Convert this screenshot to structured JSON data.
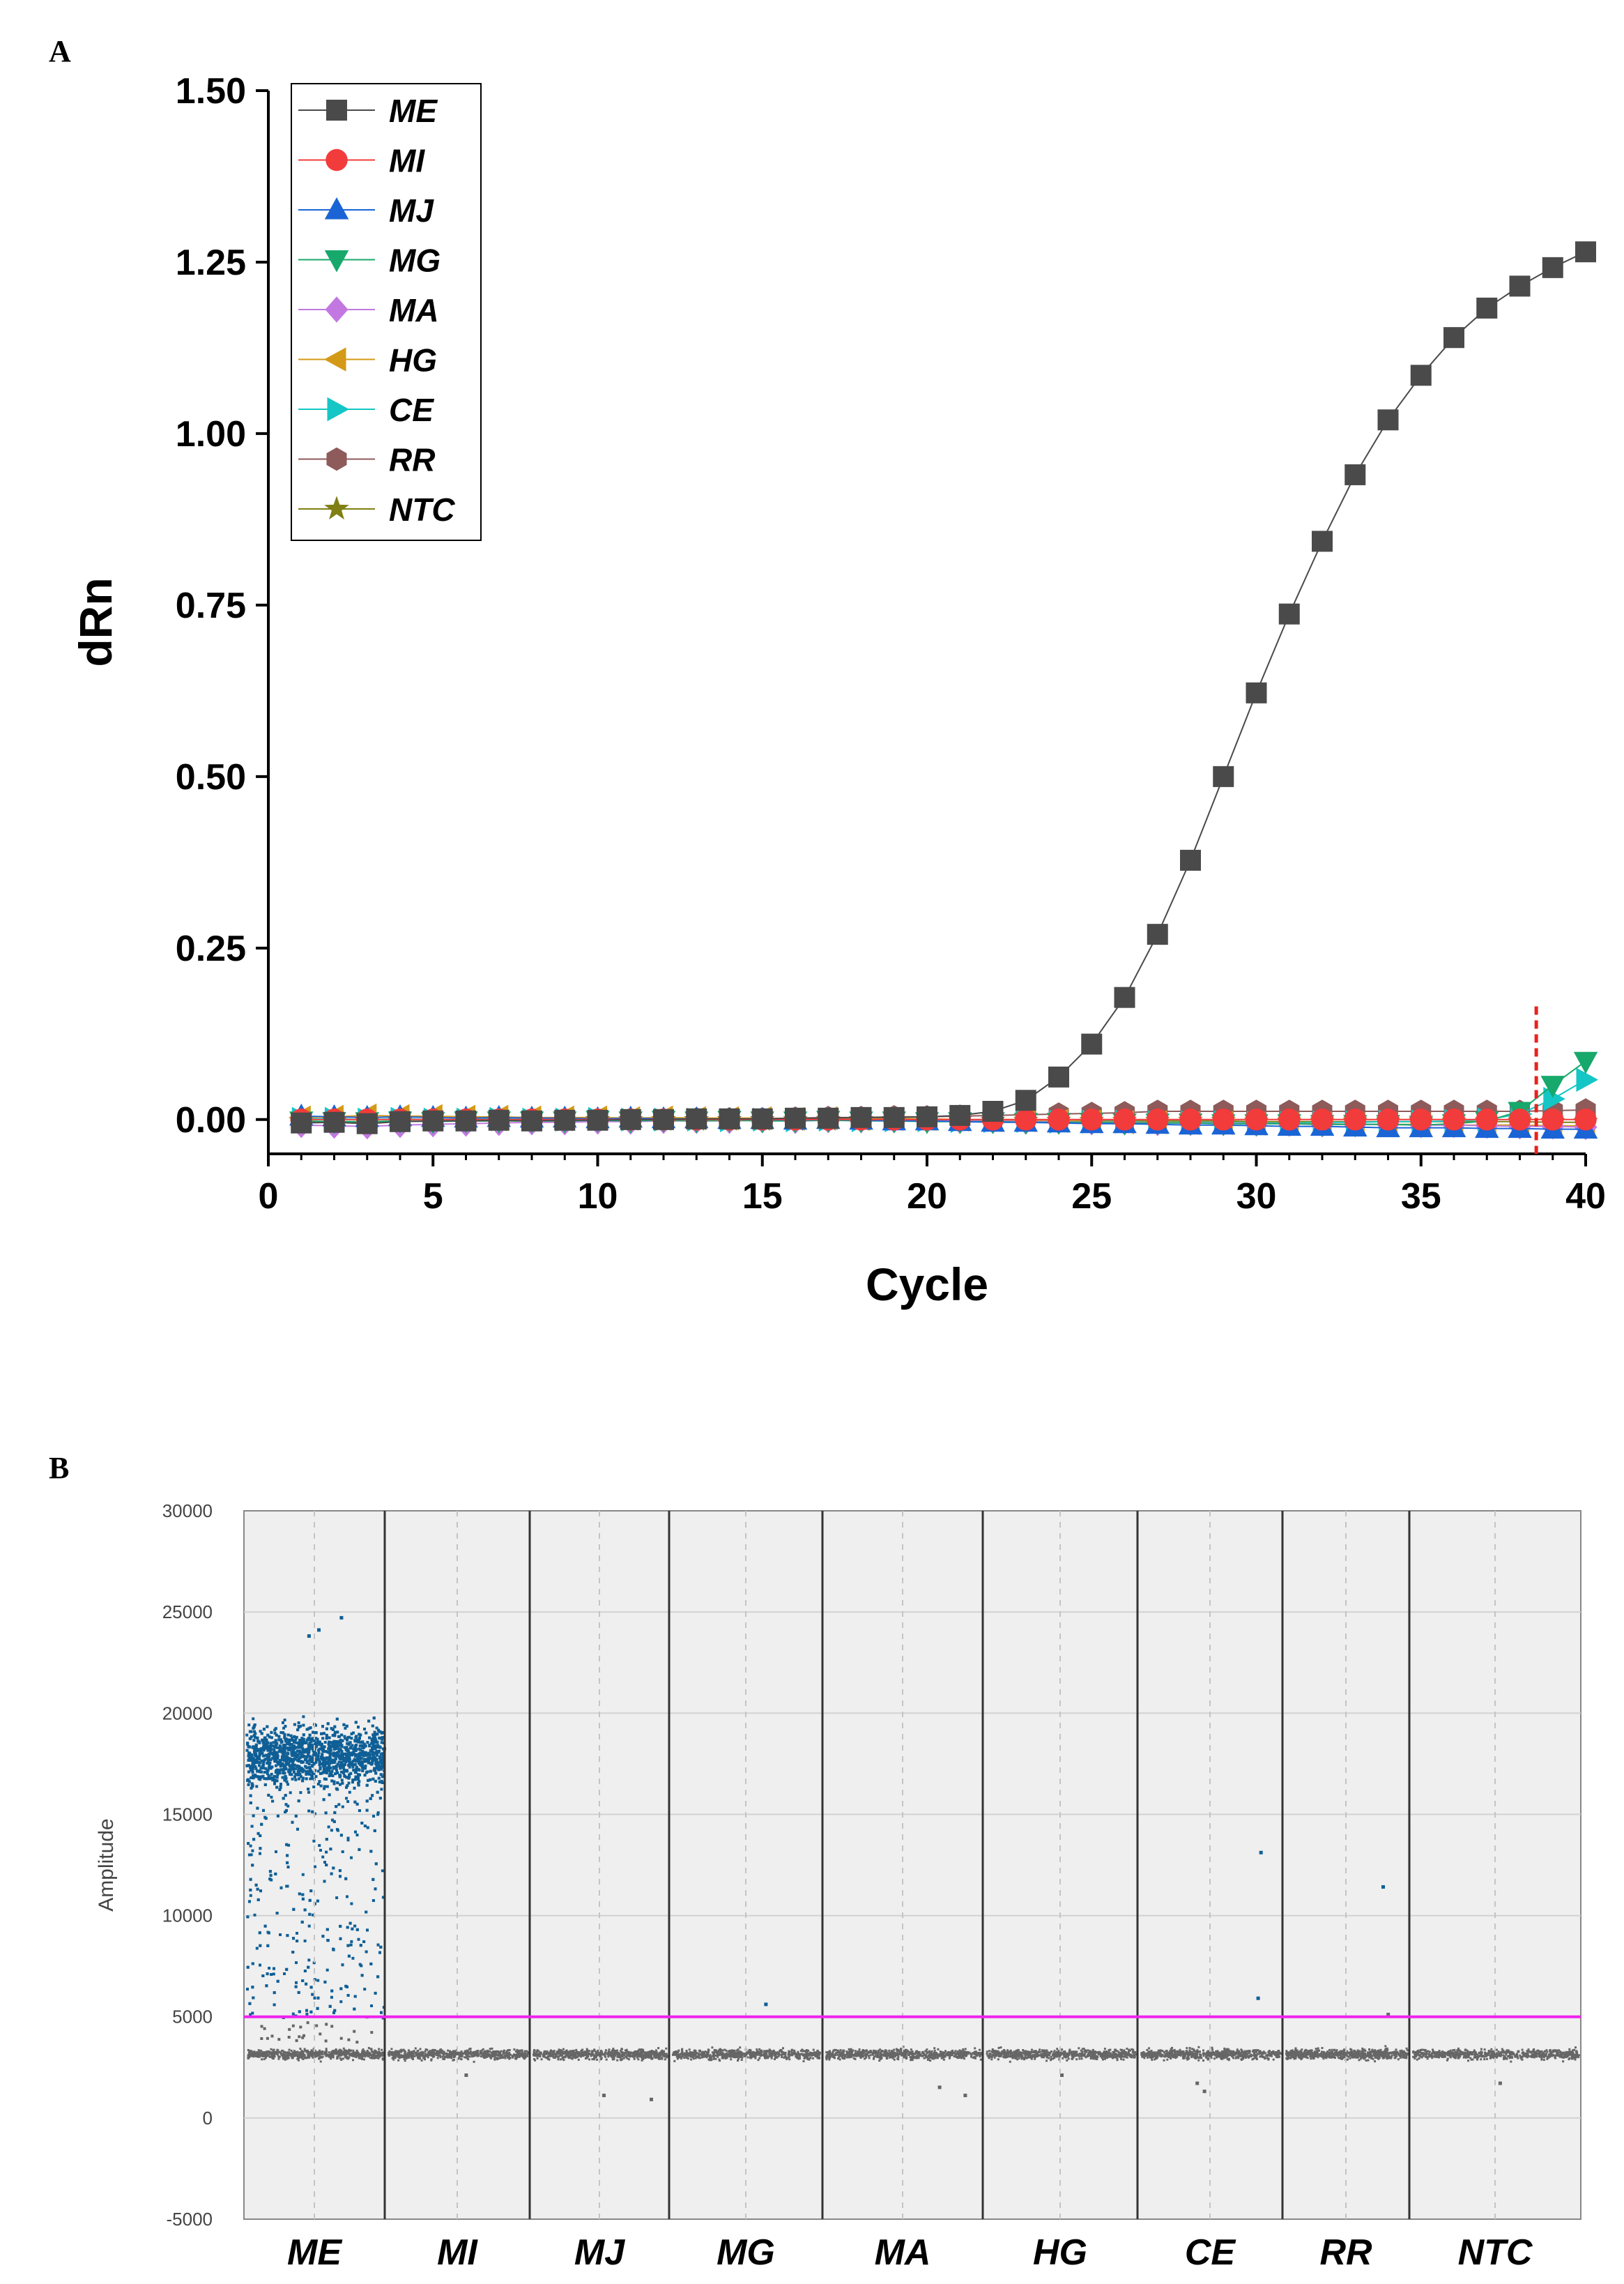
{
  "panels": {
    "a_label": "A",
    "b_label": "B"
  },
  "chart_data": [
    {
      "type": "line",
      "xlabel": "Cycle",
      "ylabel": "dRn",
      "xlim": [
        0,
        40
      ],
      "ylim": [
        -0.05,
        1.5
      ],
      "xticks": [
        "0",
        "5",
        "10",
        "15",
        "20",
        "25",
        "30",
        "35",
        "40"
      ],
      "yticks": [
        "0.00",
        "0.25",
        "0.50",
        "0.75",
        "1.00",
        "1.25",
        "1.50"
      ],
      "legend_position": "top-left",
      "threshold_cycle": 38.5,
      "threshold_color": "#e8231c",
      "x": [
        1,
        2,
        3,
        4,
        5,
        6,
        7,
        8,
        9,
        10,
        11,
        12,
        13,
        14,
        15,
        16,
        17,
        18,
        19,
        20,
        21,
        22,
        23,
        24,
        25,
        26,
        27,
        28,
        29,
        30,
        31,
        32,
        33,
        34,
        35,
        36,
        37,
        38,
        39,
        40
      ],
      "series": [
        {
          "name": "ME",
          "color": "#4a4a4a",
          "marker": "square",
          "values": [
            -0.005,
            -0.004,
            -0.006,
            -0.003,
            -0.002,
            -0.002,
            -0.001,
            -0.002,
            -0.001,
            -0.001,
            0.0,
            0.0,
            0.001,
            0.001,
            0.001,
            0.002,
            0.002,
            0.003,
            0.003,
            0.004,
            0.006,
            0.012,
            0.028,
            0.062,
            0.11,
            0.178,
            0.27,
            0.378,
            0.5,
            0.622,
            0.737,
            0.843,
            0.94,
            1.02,
            1.085,
            1.14,
            1.183,
            1.215,
            1.242,
            1.265
          ]
        },
        {
          "name": "MI",
          "color": "#f23b3b",
          "marker": "circle",
          "values": [
            0,
            0,
            0,
            0,
            0,
            0,
            0,
            0,
            0,
            0,
            0,
            0,
            0,
            0,
            0,
            0,
            0,
            0,
            0,
            0,
            0,
            0,
            0,
            0,
            0,
            0,
            0,
            0,
            0,
            0,
            0,
            0,
            0,
            0,
            0,
            0,
            0,
            0,
            0,
            0
          ]
        },
        {
          "name": "MJ",
          "color": "#1a64d6",
          "marker": "triangle-up",
          "values": [
            0.005,
            0.004,
            0.003,
            0.004,
            0.003,
            0.002,
            0.003,
            0.002,
            0.002,
            0.001,
            0.002,
            0.001,
            0.001,
            0.0,
            0.0,
            -0.001,
            0.0,
            -0.001,
            -0.002,
            -0.002,
            -0.003,
            -0.004,
            -0.004,
            -0.005,
            -0.006,
            -0.006,
            -0.007,
            -0.008,
            -0.008,
            -0.009,
            -0.01,
            -0.01,
            -0.011,
            -0.012,
            -0.012,
            -0.012,
            -0.013,
            -0.013,
            -0.014,
            -0.014
          ]
        },
        {
          "name": "MG",
          "color": "#17a86b",
          "marker": "triangle-down",
          "values": [
            -0.002,
            -0.003,
            -0.003,
            -0.002,
            -0.003,
            -0.002,
            -0.002,
            -0.002,
            -0.002,
            -0.001,
            -0.002,
            -0.001,
            -0.002,
            -0.001,
            -0.002,
            -0.002,
            -0.001,
            -0.002,
            -0.002,
            -0.003,
            -0.003,
            -0.003,
            -0.004,
            -0.004,
            -0.004,
            -0.005,
            -0.005,
            -0.005,
            -0.006,
            -0.006,
            -0.006,
            -0.007,
            -0.007,
            -0.007,
            -0.008,
            -0.006,
            -0.002,
            0.012,
            0.05,
            0.085
          ]
        },
        {
          "name": "MA",
          "color": "#c278e0",
          "marker": "diamond",
          "values": [
            -0.008,
            -0.009,
            -0.01,
            -0.008,
            -0.007,
            -0.006,
            -0.005,
            -0.004,
            -0.004,
            -0.003,
            -0.003,
            -0.002,
            -0.002,
            -0.002,
            -0.001,
            -0.002,
            -0.001,
            -0.001,
            -0.001,
            -0.001,
            -0.002,
            -0.002,
            -0.003,
            -0.003,
            -0.004,
            -0.004,
            -0.005,
            -0.005,
            -0.005,
            -0.006,
            -0.006,
            -0.007,
            -0.007,
            -0.007,
            -0.008,
            -0.008,
            -0.009,
            -0.01,
            -0.01,
            -0.011
          ]
        },
        {
          "name": "HG",
          "color": "#d49a17",
          "marker": "triangle-left",
          "values": [
            0.003,
            0.004,
            0.006,
            0.005,
            0.005,
            0.004,
            0.004,
            0.003,
            0.003,
            0.003,
            0.002,
            0.003,
            0.002,
            0.002,
            0.002,
            0.001,
            0.002,
            0.001,
            0.001,
            0.001,
            0.0,
            -0.001,
            -0.001,
            -0.002,
            -0.003,
            -0.004,
            -0.004,
            -0.005,
            -0.005,
            -0.006,
            -0.006,
            -0.006,
            -0.007,
            -0.007,
            -0.007,
            -0.008,
            -0.008,
            -0.008,
            -0.009,
            -0.009
          ]
        },
        {
          "name": "CE",
          "color": "#14c6c6",
          "marker": "triangle-right",
          "values": [
            0.001,
            0.001,
            0.0,
            0.001,
            0.0,
            0.0,
            0.001,
            0.0,
            0.0,
            0.001,
            0.0,
            0.0,
            0.0,
            -0.001,
            0.0,
            -0.001,
            0.0,
            -0.001,
            -0.001,
            -0.001,
            -0.002,
            -0.002,
            -0.002,
            -0.003,
            -0.003,
            -0.003,
            -0.004,
            -0.004,
            -0.004,
            -0.005,
            -0.005,
            -0.004,
            -0.004,
            -0.003,
            -0.003,
            -0.002,
            0.0,
            0.008,
            0.03,
            0.058
          ]
        },
        {
          "name": "RR",
          "color": "#8e5a5a",
          "marker": "hexagon",
          "values": [
            -0.004,
            -0.004,
            -0.003,
            -0.003,
            -0.002,
            -0.002,
            -0.002,
            -0.001,
            -0.001,
            -0.001,
            0.0,
            0.0,
            0.001,
            0.001,
            0.001,
            0.002,
            0.003,
            0.003,
            0.004,
            0.004,
            0.005,
            0.006,
            0.007,
            0.008,
            0.009,
            0.01,
            0.012,
            0.012,
            0.012,
            0.012,
            0.012,
            0.012,
            0.012,
            0.012,
            0.012,
            0.012,
            0.012,
            0.012,
            0.013,
            0.014
          ]
        },
        {
          "name": "NTC",
          "color": "#7f7f14",
          "marker": "star",
          "values": [
            -0.003,
            -0.003,
            -0.003,
            -0.003,
            -0.002,
            -0.002,
            -0.002,
            -0.002,
            -0.002,
            -0.001,
            -0.001,
            -0.001,
            -0.001,
            -0.001,
            -0.001,
            -0.001,
            -0.001,
            -0.001,
            -0.001,
            -0.001,
            -0.001,
            -0.002,
            -0.002,
            -0.002,
            -0.002,
            -0.002,
            -0.002,
            -0.002,
            -0.002,
            -0.003,
            -0.003,
            -0.003,
            -0.003,
            -0.003,
            -0.003,
            -0.003,
            -0.003,
            -0.003,
            -0.004,
            -0.004
          ]
        }
      ]
    },
    {
      "type": "scatter",
      "xlabel": "",
      "ylabel": "Amplitude",
      "ylim": [
        -5000,
        30000
      ],
      "yticks": [
        "30000",
        "25000",
        "20000",
        "15000",
        "10000",
        "5000",
        "0",
        "-5000"
      ],
      "categories": [
        "ME",
        "MI",
        "MJ",
        "MG",
        "MA",
        "HG",
        "CE",
        "RR",
        "NTC"
      ],
      "threshold": 5000,
      "threshold_color": "#ee22ee",
      "positive_color": "#0f5f96",
      "negative_color": "#666666",
      "background_color": "#efefef",
      "negative_band": {
        "center": 3200,
        "spread": 300
      },
      "positive_cluster": {
        "category": "ME",
        "center": 18000,
        "spread": 2300,
        "count": 2600,
        "tail_min": 5000
      },
      "outliers": [
        {
          "category": "ME",
          "y": 24800,
          "pos": 0.68,
          "kind": "positive"
        },
        {
          "category": "ME",
          "y": 23900,
          "pos": 0.45,
          "kind": "positive"
        },
        {
          "category": "ME",
          "y": 24200,
          "pos": 0.52,
          "kind": "positive"
        },
        {
          "category": "MG",
          "y": 5700,
          "pos": 0.62,
          "kind": "positive"
        },
        {
          "category": "CE",
          "y": 13200,
          "pos": 0.84,
          "kind": "positive"
        },
        {
          "category": "CE",
          "y": 6000,
          "pos": 0.82,
          "kind": "positive"
        },
        {
          "category": "RR",
          "y": 11500,
          "pos": 0.78,
          "kind": "positive"
        },
        {
          "category": "RR",
          "y": 5200,
          "pos": 0.82,
          "kind": "negative"
        },
        {
          "category": "MJ",
          "y": 1200,
          "pos": 0.52,
          "kind": "negative"
        },
        {
          "category": "MJ",
          "y": 1000,
          "pos": 0.86,
          "kind": "negative"
        },
        {
          "category": "MI",
          "y": 2200,
          "pos": 0.55,
          "kind": "negative"
        },
        {
          "category": "MA",
          "y": 1200,
          "pos": 0.88,
          "kind": "negative"
        },
        {
          "category": "MA",
          "y": 1600,
          "pos": 0.72,
          "kind": "negative"
        },
        {
          "category": "HG",
          "y": 2200,
          "pos": 0.5,
          "kind": "negative"
        },
        {
          "category": "CE",
          "y": 1800,
          "pos": 0.4,
          "kind": "negative"
        },
        {
          "category": "CE",
          "y": 1400,
          "pos": 0.45,
          "kind": "negative"
        },
        {
          "category": "NTC",
          "y": 1800,
          "pos": 0.52,
          "kind": "negative"
        }
      ]
    }
  ]
}
